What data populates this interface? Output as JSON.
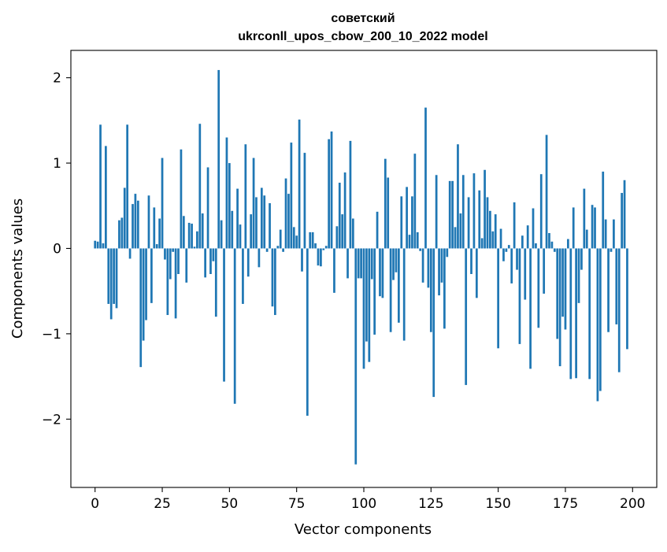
{
  "chart_data": {
    "type": "bar",
    "title_line1": "советский",
    "title_line2": "ukrconll_upos_cbow_200_10_2022 model",
    "xlabel": "Vector components",
    "ylabel": "Components values",
    "xlim": [
      -9,
      209
    ],
    "ylim": [
      -2.8,
      2.32
    ],
    "xticks": [
      0,
      25,
      50,
      75,
      100,
      125,
      150,
      175,
      200
    ],
    "yticks": [
      -2,
      -1,
      0,
      1,
      2
    ],
    "ytick_labels": [
      "−2",
      "−1",
      "0",
      "1",
      "2"
    ],
    "grid": false,
    "legend": "none",
    "bar_color": "#1f77b4",
    "values": [
      0.09,
      0.08,
      1.45,
      0.06,
      1.2,
      -0.65,
      -0.83,
      -0.65,
      -0.7,
      0.33,
      0.36,
      0.71,
      1.45,
      -0.12,
      0.52,
      0.64,
      0.56,
      -1.39,
      -1.08,
      -0.84,
      0.62,
      -0.64,
      0.48,
      0.05,
      0.35,
      1.06,
      -0.13,
      -0.78,
      -0.36,
      -0.04,
      -0.82,
      -0.3,
      1.16,
      0.38,
      -0.4,
      0.3,
      0.29,
      0.02,
      0.2,
      1.46,
      0.41,
      -0.34,
      0.95,
      -0.3,
      -0.15,
      -0.8,
      2.09,
      0.33,
      -1.56,
      1.3,
      1.0,
      0.44,
      -1.82,
      0.7,
      0.28,
      -0.65,
      1.22,
      -0.33,
      0.4,
      1.06,
      0.6,
      -0.22,
      0.71,
      0.62,
      -0.04,
      0.53,
      -0.68,
      -0.78,
      0.03,
      0.22,
      -0.04,
      0.82,
      0.64,
      1.24,
      0.25,
      0.15,
      1.51,
      -0.27,
      1.12,
      -1.96,
      0.19,
      0.19,
      0.06,
      -0.2,
      -0.21,
      -0.02,
      0.03,
      1.28,
      1.37,
      -0.52,
      0.26,
      0.77,
      0.4,
      0.89,
      -0.35,
      1.26,
      0.35,
      -2.53,
      -0.35,
      -0.35,
      -1.41,
      -1.09,
      -1.33,
      -0.36,
      -1.01,
      0.43,
      -0.56,
      -0.58,
      1.05,
      0.83,
      -0.98,
      -0.37,
      -0.28,
      -0.87,
      0.61,
      -1.08,
      0.72,
      0.16,
      0.61,
      1.11,
      0.19,
      -0.03,
      -0.4,
      1.65,
      -0.46,
      -0.98,
      -1.74,
      0.86,
      -0.55,
      -0.4,
      -0.94,
      -0.1,
      0.79,
      0.79,
      0.25,
      1.22,
      0.41,
      0.86,
      -1.6,
      0.6,
      -0.3,
      0.88,
      -0.58,
      0.68,
      0.12,
      0.92,
      0.6,
      0.44,
      0.2,
      0.4,
      -1.17,
      0.23,
      -0.15,
      -0.04,
      0.04,
      -0.41,
      0.54,
      -0.25,
      -1.12,
      0.15,
      -0.6,
      0.27,
      -1.41,
      0.47,
      0.06,
      -0.93,
      0.87,
      -0.53,
      1.33,
      0.18,
      0.08,
      -0.04,
      -1.06,
      -1.38,
      -0.8,
      -0.95,
      0.11,
      -1.53,
      0.48,
      -1.52,
      -0.64,
      -0.25,
      0.7,
      0.22,
      -1.53,
      0.51,
      0.48,
      -1.79,
      -1.67,
      0.9,
      0.34,
      -0.98,
      -0.04,
      0.34,
      -0.89,
      -1.45,
      0.65,
      0.8,
      -1.18,
      0.0
    ]
  }
}
